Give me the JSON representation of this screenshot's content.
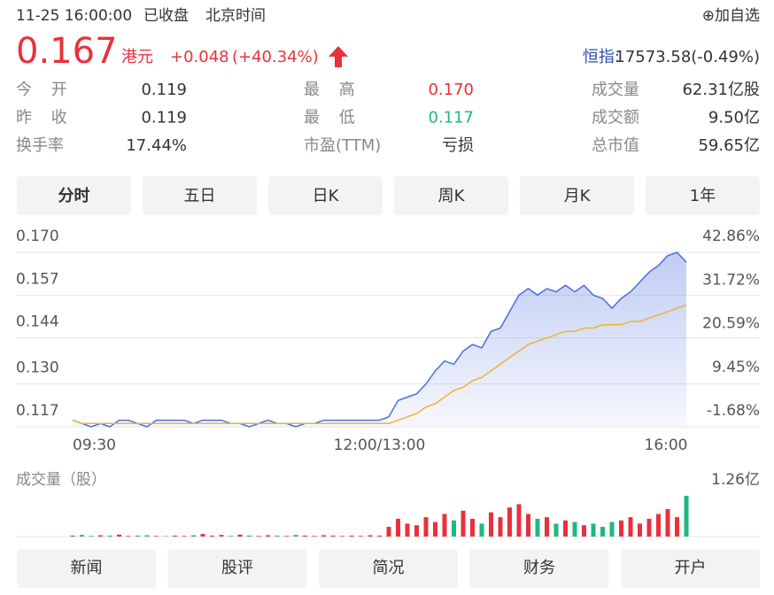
{
  "header": {
    "datetime": "11-25 16:00:00",
    "status": "已收盘",
    "timezone": "北京时间",
    "watch_button": "⊕加自选"
  },
  "quote": {
    "price": "0.167",
    "currency": "港元",
    "change": "+0.048",
    "change_pct": "(+40.34%)",
    "index_name": "恒指:",
    "index_value": "17573.58(-0.49%)"
  },
  "stats": [
    [
      "今 开",
      "0.119",
      "最 高",
      "0.170",
      "成交量",
      "62.31亿股"
    ],
    [
      "昨 收",
      "0.119",
      "最 低",
      "0.117",
      "成交额",
      "9.50亿"
    ],
    [
      "换手率",
      "17.44%",
      "市盈(TTM)",
      "亏损",
      "总市值",
      "59.65亿"
    ]
  ],
  "tabs": [
    "分时",
    "五日",
    "日K",
    "周K",
    "月K",
    "1年"
  ],
  "nav": [
    "新闻",
    "股评",
    "简况",
    "财务",
    "开户"
  ],
  "chart_data": [
    {
      "type": "line",
      "categories": [
        "09:30",
        null,
        null,
        null,
        null,
        null,
        null,
        null,
        null,
        null,
        null,
        null,
        null,
        null,
        null,
        null,
        null,
        null,
        null,
        null,
        null,
        null,
        null,
        null,
        null,
        null,
        null,
        null,
        null,
        null,
        null,
        null,
        null,
        "12:00/13:00",
        null,
        null,
        null,
        null,
        null,
        null,
        null,
        null,
        null,
        null,
        null,
        null,
        null,
        null,
        null,
        null,
        null,
        null,
        null,
        null,
        null,
        null,
        null,
        null,
        null,
        null,
        null,
        null,
        null,
        null,
        null,
        null,
        "16:00"
      ],
      "series": [
        {
          "color": "#4a6ee0",
          "values": [
            0.119,
            0.118,
            0.117,
            0.118,
            0.117,
            0.119,
            0.119,
            0.118,
            0.117,
            0.119,
            0.119,
            0.119,
            0.119,
            0.118,
            0.119,
            0.119,
            0.119,
            0.118,
            0.118,
            0.117,
            0.118,
            0.119,
            0.118,
            0.118,
            0.117,
            0.118,
            0.118,
            0.119,
            0.119,
            0.119,
            0.119,
            0.119,
            0.119,
            0.119,
            0.12,
            0.125,
            0.126,
            0.127,
            0.13,
            0.134,
            0.137,
            0.136,
            0.14,
            0.142,
            0.141,
            0.146,
            0.147,
            0.152,
            0.157,
            0.159,
            0.157,
            0.159,
            0.158,
            0.16,
            0.158,
            0.16,
            0.157,
            0.156,
            0.153,
            0.156,
            0.158,
            0.161,
            0.164,
            0.166,
            0.169,
            0.17,
            0.167
          ]
        },
        {
          "color": "#f0b429",
          "values": [
            0.119,
            0.118,
            0.118,
            0.118,
            0.118,
            0.118,
            0.118,
            0.118,
            0.118,
            0.118,
            0.118,
            0.118,
            0.118,
            0.118,
            0.118,
            0.118,
            0.118,
            0.118,
            0.118,
            0.118,
            0.118,
            0.118,
            0.118,
            0.118,
            0.118,
            0.118,
            0.118,
            0.118,
            0.118,
            0.118,
            0.118,
            0.118,
            0.118,
            0.118,
            0.118,
            0.119,
            0.12,
            0.121,
            0.123,
            0.124,
            0.126,
            0.128,
            0.129,
            0.131,
            0.132,
            0.134,
            0.136,
            0.138,
            0.14,
            0.142,
            0.143,
            0.144,
            0.145,
            0.146,
            0.146,
            0.147,
            0.147,
            0.148,
            0.148,
            0.148,
            0.149,
            0.149,
            0.15,
            0.151,
            0.152,
            0.153,
            0.154
          ]
        }
      ],
      "ylim": [
        0.117,
        0.17
      ],
      "yticks": [
        {
          "value": 0.17,
          "label": "0.170"
        },
        0.157,
        0.144,
        {
          "value": 0.13,
          "label": "0.130"
        },
        0.117
      ],
      "y2lim": [
        -1.68,
        42.86
      ],
      "y2ticks": [
        {
          "value": 42.86,
          "label": "42.86%"
        },
        {
          "value": 31.72,
          "label": "31.72%"
        },
        {
          "value": 20.59,
          "label": "20.59%"
        },
        {
          "value": 9.45,
          "label": "9.45%"
        },
        {
          "value": -1.68,
          "label": "-1.68%"
        }
      ],
      "grid": true
    },
    {
      "type": "bar",
      "title": "成交量（股）",
      "up_color": "#e8313d",
      "down_color": "#1eb980",
      "values": [
        3000000,
        5000000,
        2000000,
        4000000,
        3000000,
        6000000,
        2000000,
        3000000,
        4000000,
        2000000,
        1000000,
        3000000,
        2000000,
        4000000,
        8000000,
        3000000,
        5000000,
        2000000,
        6000000,
        3000000,
        2000000,
        4000000,
        3000000,
        2000000,
        5000000,
        3000000,
        2000000,
        4000000,
        3000000,
        2000000,
        3000000,
        2000000,
        4000000,
        3000000,
        30000000,
        55000000,
        40000000,
        35000000,
        60000000,
        45000000,
        70000000,
        50000000,
        80000000,
        55000000,
        40000000,
        75000000,
        60000000,
        90000000,
        100000000,
        70000000,
        55000000,
        60000000,
        40000000,
        50000000,
        45000000,
        35000000,
        40000000,
        30000000,
        45000000,
        50000000,
        60000000,
        40000000,
        55000000,
        70000000,
        85000000,
        60000000,
        126000000
      ],
      "ylim": [
        0,
        126000000
      ],
      "yticks": [
        {
          "value": 126000000,
          "label": "1.26亿"
        }
      ]
    }
  ]
}
